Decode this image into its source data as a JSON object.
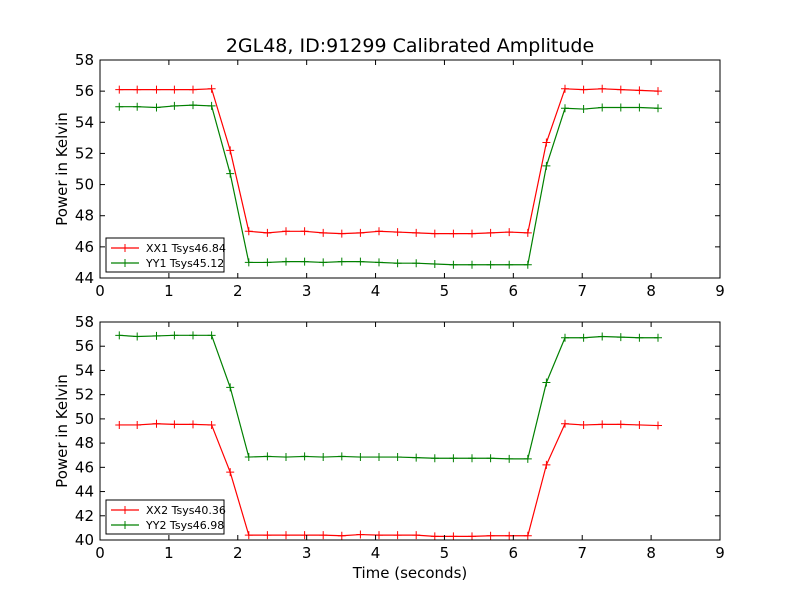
{
  "figure": {
    "title": "2GL48, ID:91299 Calibrated Amplitude",
    "xlabel": "Time (seconds)"
  },
  "chart_data": [
    {
      "type": "line",
      "ylabel": "Power in Kelvin",
      "xlim": [
        0,
        9
      ],
      "ylim": [
        44,
        58
      ],
      "xticks": [
        0,
        1,
        2,
        3,
        4,
        5,
        6,
        7,
        8,
        9
      ],
      "yticks": [
        44,
        46,
        48,
        50,
        52,
        54,
        56,
        58
      ],
      "legend_position": "lower-left",
      "x": [
        0.28,
        0.54,
        0.82,
        1.08,
        1.35,
        1.62,
        1.89,
        2.16,
        2.43,
        2.7,
        2.97,
        3.24,
        3.51,
        3.78,
        4.05,
        4.32,
        4.59,
        4.86,
        5.13,
        5.4,
        5.67,
        5.94,
        6.21,
        6.48,
        6.75,
        7.02,
        7.29,
        7.56,
        7.83,
        8.1
      ],
      "series": [
        {
          "name": "XX1 Tsys46.84",
          "color": "#ff0000",
          "values": [
            56.1,
            56.1,
            56.1,
            56.1,
            56.1,
            56.15,
            52.2,
            47.0,
            46.9,
            47.0,
            47.0,
            46.9,
            46.85,
            46.9,
            47.0,
            46.95,
            46.9,
            46.85,
            46.85,
            46.85,
            46.9,
            46.95,
            46.9,
            52.7,
            56.15,
            56.1,
            56.15,
            56.1,
            56.05,
            56.0
          ]
        },
        {
          "name": "YY1 Tsys45.12",
          "color": "#008000",
          "values": [
            55.0,
            55.0,
            54.95,
            55.05,
            55.1,
            55.05,
            50.7,
            45.0,
            45.0,
            45.05,
            45.05,
            45.0,
            45.05,
            45.05,
            45.0,
            44.95,
            44.95,
            44.9,
            44.85,
            44.85,
            44.85,
            44.85,
            44.85,
            51.2,
            54.9,
            54.85,
            54.95,
            54.95,
            54.95,
            54.9
          ]
        }
      ]
    },
    {
      "type": "line",
      "ylabel": "Power in Kelvin",
      "xlim": [
        0,
        9
      ],
      "ylim": [
        40,
        58
      ],
      "xticks": [
        0,
        1,
        2,
        3,
        4,
        5,
        6,
        7,
        8,
        9
      ],
      "yticks": [
        40,
        42,
        44,
        46,
        48,
        50,
        52,
        54,
        56,
        58
      ],
      "legend_position": "lower-left",
      "x": [
        0.28,
        0.54,
        0.82,
        1.08,
        1.35,
        1.62,
        1.89,
        2.16,
        2.43,
        2.7,
        2.97,
        3.24,
        3.51,
        3.78,
        4.05,
        4.32,
        4.59,
        4.86,
        5.13,
        5.4,
        5.67,
        5.94,
        6.21,
        6.48,
        6.75,
        7.02,
        7.29,
        7.56,
        7.83,
        8.1
      ],
      "series": [
        {
          "name": "XX2 Tsys40.36",
          "color": "#ff0000",
          "values": [
            49.5,
            49.5,
            49.6,
            49.55,
            49.55,
            49.5,
            45.6,
            40.4,
            40.4,
            40.4,
            40.4,
            40.4,
            40.35,
            40.45,
            40.4,
            40.4,
            40.4,
            40.3,
            40.3,
            40.3,
            40.35,
            40.35,
            40.35,
            46.2,
            49.6,
            49.5,
            49.55,
            49.55,
            49.5,
            49.45
          ]
        },
        {
          "name": "YY2 Tsys46.98",
          "color": "#008000",
          "values": [
            56.9,
            56.8,
            56.85,
            56.9,
            56.9,
            56.9,
            52.6,
            46.85,
            46.9,
            46.85,
            46.9,
            46.85,
            46.9,
            46.85,
            46.85,
            46.85,
            46.8,
            46.75,
            46.75,
            46.75,
            46.75,
            46.7,
            46.7,
            53.0,
            56.7,
            56.7,
            56.8,
            56.75,
            56.7,
            56.7
          ]
        }
      ]
    }
  ]
}
